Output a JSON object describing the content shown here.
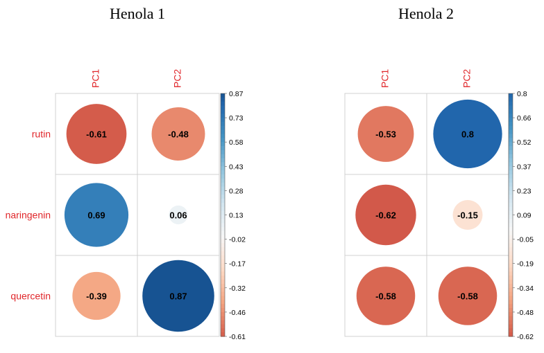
{
  "chart_data": [
    {
      "type": "heatmap",
      "title": "Henola 1",
      "columns": [
        "PC1",
        "PC2"
      ],
      "rows": [
        "rutin",
        "naringenin",
        "quercetin"
      ],
      "values": [
        [
          -0.61,
          -0.48
        ],
        [
          0.69,
          0.06
        ],
        [
          -0.39,
          0.87
        ]
      ],
      "value_labels": [
        [
          "-0.61",
          "-0.48"
        ],
        [
          "0.69",
          "0.06"
        ],
        [
          "-0.39",
          "0.87"
        ]
      ],
      "colorbar": {
        "ticks": [
          "0.87",
          "0.73",
          "0.58",
          "0.43",
          "0.28",
          "0.13",
          "-0.02",
          "-0.17",
          "-0.32",
          "-0.46",
          "-0.61"
        ],
        "min": -0.61,
        "max": 0.87
      }
    },
    {
      "type": "heatmap",
      "title": "Henola 2",
      "columns": [
        "PC1",
        "PC2"
      ],
      "rows": [
        "rutin",
        "naringenin",
        "quercetin"
      ],
      "values": [
        [
          -0.53,
          0.8
        ],
        [
          -0.62,
          -0.15
        ],
        [
          -0.58,
          -0.58
        ]
      ],
      "value_labels": [
        [
          "-0.53",
          "0.8"
        ],
        [
          "-0.62",
          "-0.15"
        ],
        [
          "-0.58",
          "-0.58"
        ]
      ],
      "colorbar": {
        "ticks": [
          "0.8",
          "0.66",
          "0.52",
          "0.37",
          "0.23",
          "0.09",
          "-0.05",
          "-0.19",
          "-0.34",
          "-0.48",
          "-0.62"
        ],
        "min": -0.62,
        "max": 0.8
      }
    }
  ],
  "colors": {
    "label": "#e0262a",
    "grid": "#d0d0d0",
    "scale": [
      "#67001f",
      "#b2182b",
      "#d6604d",
      "#f4a582",
      "#fddbc7",
      "#f7f7f7",
      "#d1e5f0",
      "#92c5de",
      "#4393c3",
      "#2166ac",
      "#053061"
    ]
  }
}
